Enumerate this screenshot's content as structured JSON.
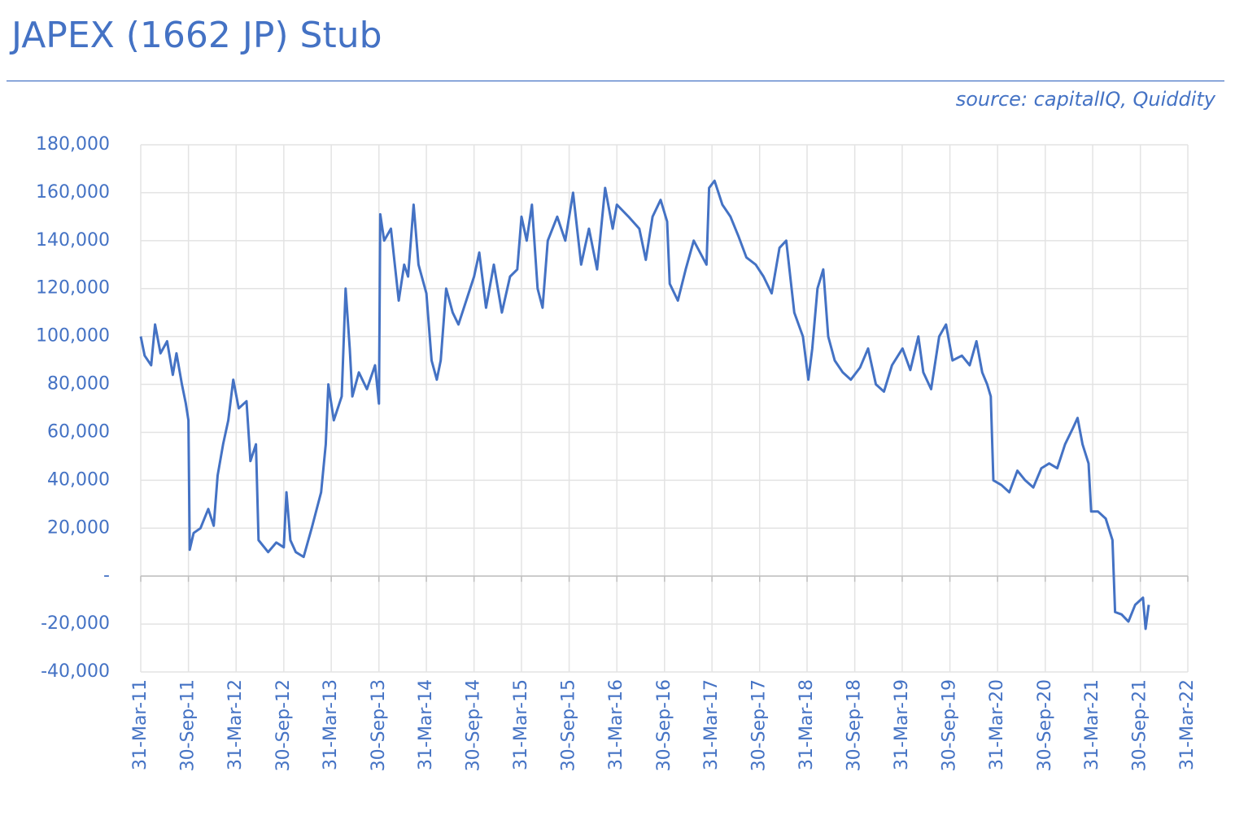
{
  "chart_data": {
    "type": "line",
    "title": "JAPEX (1662 JP) Stub",
    "source": "source: capitalIQ, Quiddity",
    "color": "#4472c4",
    "grid": true,
    "ylim": [
      -40000,
      180000
    ],
    "yticks": [
      {
        "value": -40000,
        "label": "-40,000"
      },
      {
        "value": -20000,
        "label": "-20,000"
      },
      {
        "value": 0,
        "label": "-"
      },
      {
        "value": 20000,
        "label": "20,000"
      },
      {
        "value": 40000,
        "label": "40,000"
      },
      {
        "value": 60000,
        "label": "60,000"
      },
      {
        "value": 80000,
        "label": "80,000"
      },
      {
        "value": 100000,
        "label": "100,000"
      },
      {
        "value": 120000,
        "label": "120,000"
      },
      {
        "value": 140000,
        "label": "140,000"
      },
      {
        "value": 160000,
        "label": "160,000"
      },
      {
        "value": 180000,
        "label": "180,000"
      }
    ],
    "xlim": [
      "2011-03-31",
      "2022-03-31"
    ],
    "xticks": [
      {
        "value": "2011-03-31",
        "label": "31-Mar-11"
      },
      {
        "value": "2011-09-30",
        "label": "30-Sep-11"
      },
      {
        "value": "2012-03-31",
        "label": "31-Mar-12"
      },
      {
        "value": "2012-09-30",
        "label": "30-Sep-12"
      },
      {
        "value": "2013-03-31",
        "label": "31-Mar-13"
      },
      {
        "value": "2013-09-30",
        "label": "30-Sep-13"
      },
      {
        "value": "2014-03-31",
        "label": "31-Mar-14"
      },
      {
        "value": "2014-09-30",
        "label": "30-Sep-14"
      },
      {
        "value": "2015-03-31",
        "label": "31-Mar-15"
      },
      {
        "value": "2015-09-30",
        "label": "30-Sep-15"
      },
      {
        "value": "2016-03-31",
        "label": "31-Mar-16"
      },
      {
        "value": "2016-09-30",
        "label": "30-Sep-16"
      },
      {
        "value": "2017-03-31",
        "label": "31-Mar-17"
      },
      {
        "value": "2017-09-30",
        "label": "30-Sep-17"
      },
      {
        "value": "2018-03-31",
        "label": "31-Mar-18"
      },
      {
        "value": "2018-09-30",
        "label": "30-Sep-18"
      },
      {
        "value": "2019-03-31",
        "label": "31-Mar-19"
      },
      {
        "value": "2019-09-30",
        "label": "30-Sep-19"
      },
      {
        "value": "2020-03-31",
        "label": "31-Mar-20"
      },
      {
        "value": "2020-09-30",
        "label": "30-Sep-20"
      },
      {
        "value": "2021-03-31",
        "label": "31-Mar-21"
      },
      {
        "value": "2021-09-30",
        "label": "30-Sep-21"
      },
      {
        "value": "2022-03-31",
        "label": "31-Mar-22"
      }
    ],
    "x": [
      "2011-03-31",
      "2011-04-15",
      "2011-05-10",
      "2011-05-25",
      "2011-06-15",
      "2011-07-10",
      "2011-08-01",
      "2011-08-15",
      "2011-09-05",
      "2011-09-20",
      "2011-09-30",
      "2011-10-05",
      "2011-10-20",
      "2011-11-15",
      "2011-12-15",
      "2012-01-05",
      "2012-01-20",
      "2012-02-10",
      "2012-03-01",
      "2012-03-20",
      "2012-04-10",
      "2012-05-10",
      "2012-05-25",
      "2012-06-15",
      "2012-06-25",
      "2012-08-01",
      "2012-09-01",
      "2012-09-30",
      "2012-10-10",
      "2012-10-25",
      "2012-11-15",
      "2012-12-15",
      "2013-01-15",
      "2013-02-20",
      "2013-03-10",
      "2013-03-20",
      "2013-04-10",
      "2013-05-10",
      "2013-05-25",
      "2013-06-10",
      "2013-06-20",
      "2013-07-15",
      "2013-08-15",
      "2013-09-15",
      "2013-09-30",
      "2013-10-05",
      "2013-10-20",
      "2013-11-15",
      "2013-12-15",
      "2014-01-05",
      "2014-01-20",
      "2014-02-10",
      "2014-03-01",
      "2014-03-31",
      "2014-04-20",
      "2014-05-10",
      "2014-05-25",
      "2014-06-15",
      "2014-07-10",
      "2014-08-01",
      "2014-09-30",
      "2014-10-20",
      "2014-11-15",
      "2014-12-15",
      "2015-01-15",
      "2015-02-15",
      "2015-03-15",
      "2015-03-31",
      "2015-04-20",
      "2015-05-10",
      "2015-06-01",
      "2015-06-20",
      "2015-07-10",
      "2015-08-15",
      "2015-09-15",
      "2015-10-15",
      "2015-11-15",
      "2015-12-15",
      "2016-01-15",
      "2016-02-15",
      "2016-03-15",
      "2016-03-31",
      "2016-05-15",
      "2016-06-25",
      "2016-07-20",
      "2016-08-15",
      "2016-09-15",
      "2016-10-10",
      "2016-10-20",
      "2016-11-20",
      "2016-12-20",
      "2017-01-20",
      "2017-03-10",
      "2017-03-20",
      "2017-04-10",
      "2017-05-10",
      "2017-06-10",
      "2017-07-10",
      "2017-08-10",
      "2017-09-15",
      "2017-10-15",
      "2017-11-15",
      "2017-12-15",
      "2018-01-10",
      "2018-02-10",
      "2018-03-15",
      "2018-04-05",
      "2018-04-20",
      "2018-05-10",
      "2018-06-01",
      "2018-06-20",
      "2018-07-15",
      "2018-08-15",
      "2018-09-15",
      "2018-10-20",
      "2018-11-20",
      "2018-12-20",
      "2019-01-20",
      "2019-02-20",
      "2019-04-01",
      "2019-05-01",
      "2019-06-01",
      "2019-06-20",
      "2019-07-20",
      "2019-08-20",
      "2019-09-15",
      "2019-10-10",
      "2019-11-15",
      "2019-12-15",
      "2020-01-10",
      "2020-02-01",
      "2020-02-20",
      "2020-03-05",
      "2020-03-15",
      "2020-04-15",
      "2020-05-15",
      "2020-06-15",
      "2020-07-15",
      "2020-08-15",
      "2020-09-15",
      "2020-10-15",
      "2020-11-15",
      "2020-12-15",
      "2021-01-15",
      "2021-02-01",
      "2021-02-20",
      "2021-03-15",
      "2021-03-25",
      "2021-04-20",
      "2021-05-20",
      "2021-06-15",
      "2021-06-25",
      "2021-07-20",
      "2021-08-15",
      "2021-09-10",
      "2021-09-30",
      "2021-10-10",
      "2021-10-20",
      "2021-11-01"
    ],
    "values": [
      100000,
      92000,
      88000,
      105000,
      93000,
      98000,
      84000,
      93000,
      80000,
      72000,
      65000,
      11000,
      18000,
      20000,
      28000,
      21000,
      42000,
      55000,
      65000,
      82000,
      70000,
      73000,
      48000,
      55000,
      15000,
      10000,
      14000,
      12000,
      35000,
      15000,
      10000,
      8000,
      20000,
      35000,
      55000,
      80000,
      65000,
      75000,
      120000,
      95000,
      75000,
      85000,
      78000,
      88000,
      72000,
      151000,
      140000,
      145000,
      115000,
      130000,
      125000,
      155000,
      130000,
      118000,
      90000,
      82000,
      90000,
      120000,
      110000,
      105000,
      125000,
      135000,
      112000,
      130000,
      110000,
      125000,
      128000,
      150000,
      140000,
      155000,
      120000,
      112000,
      140000,
      150000,
      140000,
      160000,
      130000,
      145000,
      128000,
      162000,
      145000,
      155000,
      150000,
      145000,
      132000,
      150000,
      157000,
      148000,
      122000,
      115000,
      128000,
      140000,
      130000,
      162000,
      165000,
      155000,
      150000,
      142000,
      133000,
      130000,
      125000,
      118000,
      137000,
      140000,
      110000,
      100000,
      82000,
      95000,
      120000,
      128000,
      100000,
      90000,
      85000,
      82000,
      87000,
      95000,
      80000,
      77000,
      88000,
      95000,
      86000,
      100000,
      85000,
      78000,
      100000,
      105000,
      90000,
      92000,
      88000,
      98000,
      85000,
      80000,
      75000,
      40000,
      38000,
      35000,
      44000,
      40000,
      37000,
      45000,
      47000,
      45000,
      55000,
      62000,
      66000,
      55000,
      47000,
      27000,
      27000,
      24000,
      15000,
      -15000,
      -16000,
      -19000,
      -12000,
      -10000,
      -9000,
      -22000,
      -12000
    ]
  }
}
